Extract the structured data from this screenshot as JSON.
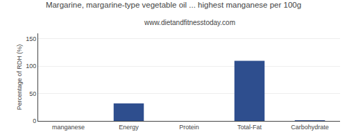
{
  "chart_data": {
    "type": "bar",
    "title": "Margarine, margarine-type vegetable oil ... highest manganese per 100g",
    "subtitle": "www.dietandfitnesstoday.com",
    "categories": [
      "manganese",
      "Energy",
      "Protein",
      "Total-Fat",
      "Carbohydrate"
    ],
    "values": [
      0,
      32,
      0,
      110,
      1
    ],
    "color": "#2e4e8e",
    "ylabel": "Percentage of RDH (%)",
    "ylim": [
      0,
      160
    ],
    "yticks": [
      0,
      50,
      100,
      150
    ],
    "grid": true
  }
}
